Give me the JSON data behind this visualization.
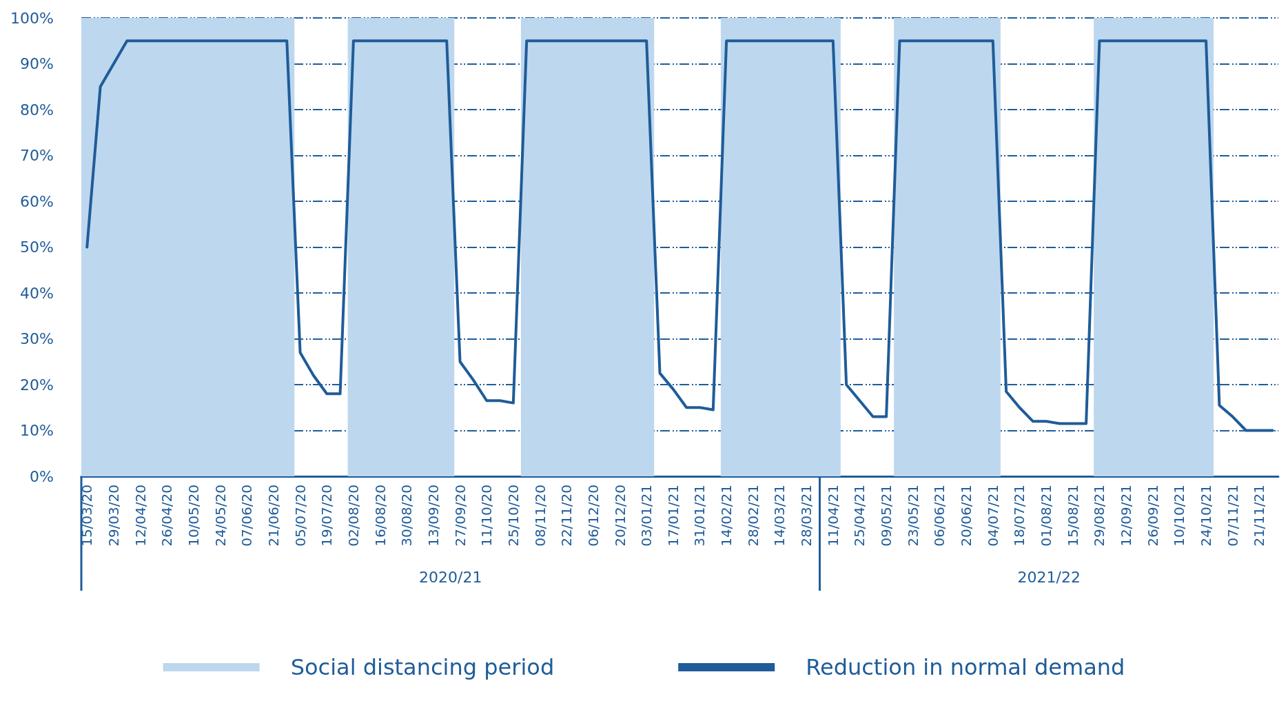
{
  "chart_data": {
    "type": "line",
    "x": [
      "2020-03-15",
      "2020-03-22",
      "2020-03-29",
      "2020-04-05",
      "2020-04-12",
      "2020-04-19",
      "2020-04-26",
      "2020-05-03",
      "2020-05-10",
      "2020-05-17",
      "2020-05-24",
      "2020-05-31",
      "2020-06-07",
      "2020-06-14",
      "2020-06-21",
      "2020-06-28",
      "2020-07-05",
      "2020-07-12",
      "2020-07-19",
      "2020-07-26",
      "2020-08-02",
      "2020-08-09",
      "2020-08-16",
      "2020-08-23",
      "2020-08-30",
      "2020-09-06",
      "2020-09-13",
      "2020-09-20",
      "2020-09-27",
      "2020-10-04",
      "2020-10-11",
      "2020-10-18",
      "2020-10-25",
      "2020-11-01",
      "2020-11-08",
      "2020-11-15",
      "2020-11-22",
      "2020-11-29",
      "2020-12-06",
      "2020-12-13",
      "2020-12-20",
      "2020-12-27",
      "2021-01-03",
      "2021-01-10",
      "2021-01-17",
      "2021-01-24",
      "2021-01-31",
      "2021-02-07",
      "2021-02-14",
      "2021-02-21",
      "2021-02-28",
      "2021-03-07",
      "2021-03-14",
      "2021-03-21",
      "2021-03-28",
      "2021-04-04",
      "2021-04-11",
      "2021-04-18",
      "2021-04-25",
      "2021-05-02",
      "2021-05-09",
      "2021-05-16",
      "2021-05-23",
      "2021-05-30",
      "2021-06-06",
      "2021-06-13",
      "2021-06-20",
      "2021-06-27",
      "2021-07-04",
      "2021-07-11",
      "2021-07-18",
      "2021-07-25",
      "2021-08-01",
      "2021-08-08",
      "2021-08-15",
      "2021-08-22",
      "2021-08-29",
      "2021-09-05",
      "2021-09-12",
      "2021-09-19",
      "2021-09-26",
      "2021-10-03",
      "2021-10-10",
      "2021-10-17",
      "2021-10-24",
      "2021-10-31",
      "2021-11-07",
      "2021-11-14",
      "2021-11-21",
      "2021-11-28"
    ],
    "series": [
      {
        "name": "Reduction in normal demand",
        "color": "#1f5c99",
        "values": [
          50,
          85,
          90,
          95,
          95,
          95,
          95,
          95,
          95,
          95,
          95,
          95,
          95,
          95,
          95,
          95,
          27,
          22,
          18,
          18,
          95,
          95,
          95,
          95,
          95,
          95,
          95,
          95,
          25,
          21,
          16.5,
          16.5,
          16,
          95,
          95,
          95,
          95,
          95,
          95,
          95,
          95,
          95,
          95,
          22.5,
          19,
          15,
          15,
          14.5,
          95,
          95,
          95,
          95,
          95,
          95,
          95,
          95,
          95,
          20,
          16.5,
          13,
          13,
          95,
          95,
          95,
          95,
          95,
          95,
          95,
          95,
          18.5,
          15,
          12,
          12,
          11.5,
          11.5,
          11.5,
          95,
          95,
          95,
          95,
          95,
          95,
          95,
          95,
          95,
          15.5,
          13,
          10,
          10,
          10
        ]
      }
    ],
    "bands": [
      {
        "axis": "x",
        "from": "2020-03-12",
        "to": "2020-07-02",
        "label": "Social distancing period",
        "color": "#bdd7ee"
      },
      {
        "axis": "x",
        "from": "2020-07-30",
        "to": "2020-09-24",
        "color": "#bdd7ee"
      },
      {
        "axis": "x",
        "from": "2020-10-29",
        "to": "2021-01-07",
        "color": "#bdd7ee"
      },
      {
        "axis": "x",
        "from": "2021-02-11",
        "to": "2021-04-15",
        "color": "#bdd7ee"
      },
      {
        "axis": "x",
        "from": "2021-05-13",
        "to": "2021-07-08",
        "color": "#bdd7ee"
      },
      {
        "axis": "x",
        "from": "2021-08-26",
        "to": "2021-10-28",
        "color": "#bdd7ee"
      }
    ],
    "xlim": [
      "2020-03-12",
      "2021-12-01"
    ],
    "xticks": [
      {
        "value": "2020-03-15",
        "label": "15/03/20"
      },
      {
        "value": "2020-03-29",
        "label": "29/03/20"
      },
      {
        "value": "2020-04-12",
        "label": "12/04/20"
      },
      {
        "value": "2020-04-26",
        "label": "26/04/20"
      },
      {
        "value": "2020-05-10",
        "label": "10/05/20"
      },
      {
        "value": "2020-05-24",
        "label": "24/05/20"
      },
      {
        "value": "2020-06-07",
        "label": "07/06/20"
      },
      {
        "value": "2020-06-21",
        "label": "21/06/20"
      },
      {
        "value": "2020-07-05",
        "label": "05/07/20"
      },
      {
        "value": "2020-07-19",
        "label": "19/07/20"
      },
      {
        "value": "2020-08-02",
        "label": "02/08/20"
      },
      {
        "value": "2020-08-16",
        "label": "16/08/20"
      },
      {
        "value": "2020-08-30",
        "label": "30/08/20"
      },
      {
        "value": "2020-09-13",
        "label": "13/09/20"
      },
      {
        "value": "2020-09-27",
        "label": "27/09/20"
      },
      {
        "value": "2020-10-11",
        "label": "11/10/20"
      },
      {
        "value": "2020-10-25",
        "label": "25/10/20"
      },
      {
        "value": "2020-11-08",
        "label": "08/11/20"
      },
      {
        "value": "2020-11-22",
        "label": "22/11/20"
      },
      {
        "value": "2020-12-06",
        "label": "06/12/20"
      },
      {
        "value": "2020-12-20",
        "label": "20/12/20"
      },
      {
        "value": "2021-01-03",
        "label": "03/01/21"
      },
      {
        "value": "2021-01-17",
        "label": "17/01/21"
      },
      {
        "value": "2021-01-31",
        "label": "31/01/21"
      },
      {
        "value": "2021-02-14",
        "label": "14/02/21"
      },
      {
        "value": "2021-02-28",
        "label": "28/02/21"
      },
      {
        "value": "2021-03-14",
        "label": "14/03/21"
      },
      {
        "value": "2021-03-28",
        "label": "28/03/21"
      },
      {
        "value": "2021-04-11",
        "label": "11/04/21"
      },
      {
        "value": "2021-04-25",
        "label": "25/04/21"
      },
      {
        "value": "2021-05-09",
        "label": "09/05/21"
      },
      {
        "value": "2021-05-23",
        "label": "23/05/21"
      },
      {
        "value": "2021-06-06",
        "label": "06/06/21"
      },
      {
        "value": "2021-06-20",
        "label": "20/06/21"
      },
      {
        "value": "2021-07-04",
        "label": "04/07/21"
      },
      {
        "value": "2021-07-18",
        "label": "18/07/21"
      },
      {
        "value": "2021-08-01",
        "label": "01/08/21"
      },
      {
        "value": "2021-08-15",
        "label": "15/08/21"
      },
      {
        "value": "2021-08-29",
        "label": "29/08/21"
      },
      {
        "value": "2021-09-12",
        "label": "12/09/21"
      },
      {
        "value": "2021-09-26",
        "label": "26/09/21"
      },
      {
        "value": "2021-10-10",
        "label": "10/10/21"
      },
      {
        "value": "2021-10-24",
        "label": "24/10/21"
      },
      {
        "value": "2021-11-07",
        "label": "07/11/21"
      },
      {
        "value": "2021-11-21",
        "label": "21/11/21"
      }
    ],
    "ylim": [
      0,
      100
    ],
    "yticks": [
      {
        "value": 0,
        "label": "0%"
      },
      {
        "value": 10,
        "label": "10%"
      },
      {
        "value": 20,
        "label": "20%"
      },
      {
        "value": 30,
        "label": "30%"
      },
      {
        "value": 40,
        "label": "40%"
      },
      {
        "value": 50,
        "label": "50%"
      },
      {
        "value": 60,
        "label": "60%"
      },
      {
        "value": 70,
        "label": "70%"
      },
      {
        "value": 80,
        "label": "80%"
      },
      {
        "value": 90,
        "label": "90%"
      },
      {
        "value": 100,
        "label": "100%"
      }
    ],
    "grid": "y",
    "legend": "bottom",
    "marker": "none",
    "line_style": "solid",
    "annotations": [
      "2020/21",
      "2021/22"
    ]
  }
}
